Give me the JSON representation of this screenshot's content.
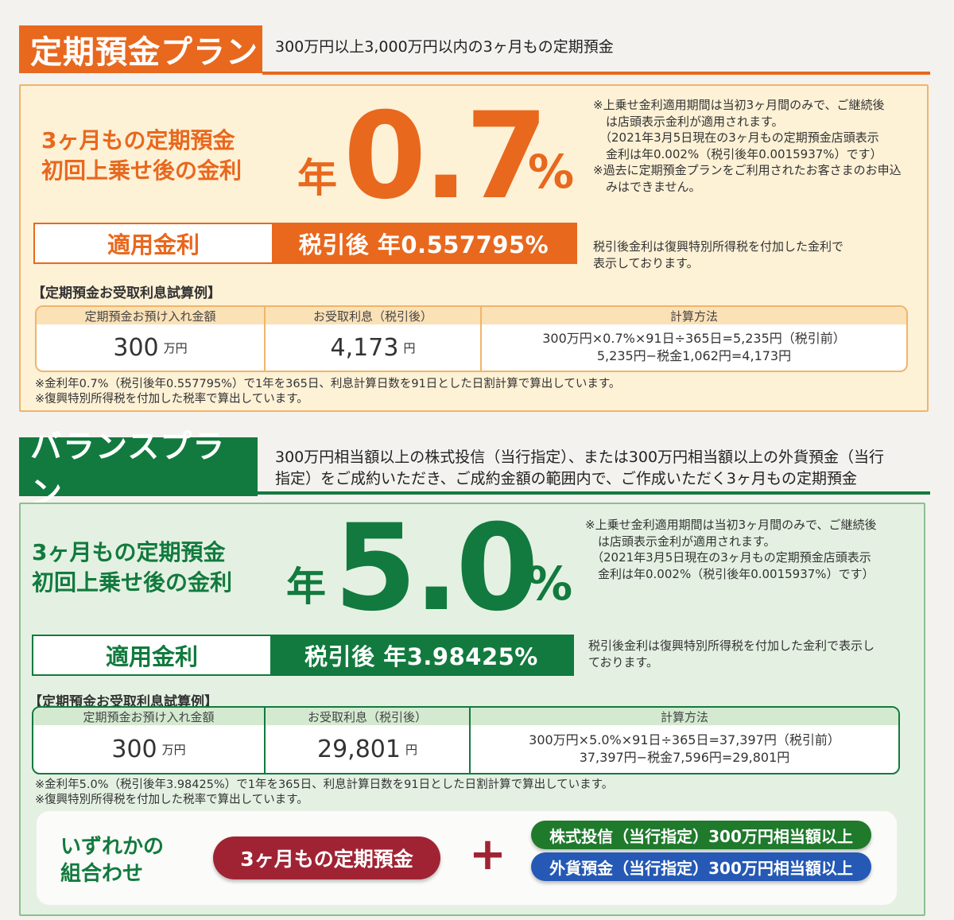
{
  "colors": {
    "orange": "#e8681e",
    "orange_panel": "#fdf1d6",
    "orange_border": "#f0b56a",
    "green": "#127a3e",
    "green_panel": "#e4f1e2",
    "green_border": "#8bc08f",
    "maroon": "#a02334",
    "pill_green": "#1f7a2c",
    "pill_blue": "#2559b5"
  },
  "teiki": {
    "title": "定期預金プラン",
    "description": "300万円以上3,000万円以内の3ヶ月もの定期預金",
    "label_line1": "3ヶ月もの定期預金",
    "label_line2": "初回上乗せ後の金利",
    "nen": "年",
    "rate_number": "0.7",
    "rate_pct": "%",
    "notes": [
      "※上乗せ金利適用期間は当初3ヶ月間のみで、ご継続後",
      "は店頭表示金利が適用されます。",
      "（2021年3月5日現在の3ヶ月もの定期預金店頭表示",
      "金利は年0.002%（税引後年0.0015937%）です）",
      "※過去に定期預金プランをご利用されたお客さまのお申込",
      "みはできません。"
    ],
    "applied_label": "適用金利",
    "applied_value": "税引後 年0.557795%",
    "applied_note": [
      "税引後金利は復興特別所得税を付加した金利で",
      "表示しております。"
    ],
    "calc_title": "【定期預金お受取利息試算例】",
    "col1_head": "定期預金お預け入れ金額",
    "col2_head": "お受取利息（税引後）",
    "col3_head": "計算方法",
    "deposit": "300",
    "deposit_unit": "万円",
    "interest": "4,173",
    "interest_unit": "円",
    "method_line1": "300万円×0.7%×91日÷365日=5,235円（税引前）",
    "method_line2": "5,235円−税金1,062円=4,173円",
    "footnote1": "※金利年0.7%（税引後年0.557795%）で1年を365日、利息計算日数を91日とした日割計算で算出しています。",
    "footnote2": "※復興特別所得税を付加した税率で算出しています。"
  },
  "balance": {
    "title": "バランスプラン",
    "description_line1": "300万円相当額以上の株式投信（当行指定）、または300万円相当額以上の外貨預金（当行",
    "description_line2": "指定）をご成約いただき、ご成約金額の範囲内で、ご作成いただく3ヶ月もの定期預金",
    "label_line1": "3ヶ月もの定期預金",
    "label_line2": "初回上乗せ後の金利",
    "nen": "年",
    "rate_number": "5.0",
    "rate_pct": "%",
    "notes": [
      "※上乗せ金利適用期間は当初3ヶ月間のみで、ご継続後",
      "は店頭表示金利が適用されます。",
      "（2021年3月5日現在の3ヶ月もの定期預金店頭表示",
      "金利は年0.002%（税引後年0.0015937%）です）"
    ],
    "applied_label": "適用金利",
    "applied_value": "税引後 年3.98425%",
    "applied_note": [
      "税引後金利は復興特別所得税を付加した金利で表示し",
      "ております。"
    ],
    "calc_title": "【定期預金お受取利息試算例】",
    "col1_head": "定期預金お預け入れ金額",
    "col2_head": "お受取利息（税引後）",
    "col3_head": "計算方法",
    "deposit": "300",
    "deposit_unit": "万円",
    "interest": "29,801",
    "interest_unit": "円",
    "method_line1": "300万円×5.0%×91日÷365日=37,397円（税引前）",
    "method_line2": "37,397円−税金7,596円=29,801円",
    "footnote1": "※金利年5.0%（税引後年3.98425%）で1年を365日、利息計算日数を91日とした日割計算で算出しています。",
    "footnote2": "※復興特別所得税を付加した税率で算出しています。"
  },
  "combo": {
    "label_line1": "いずれかの",
    "label_line2": "組合わせ",
    "deposit_pill": "3ヶ月もの定期預金",
    "plus": "+",
    "fund_pill": "株式投信（当行指定）300万円相当額以上",
    "fx_pill": "外貨預金（当行指定）300万円相当額以上"
  }
}
